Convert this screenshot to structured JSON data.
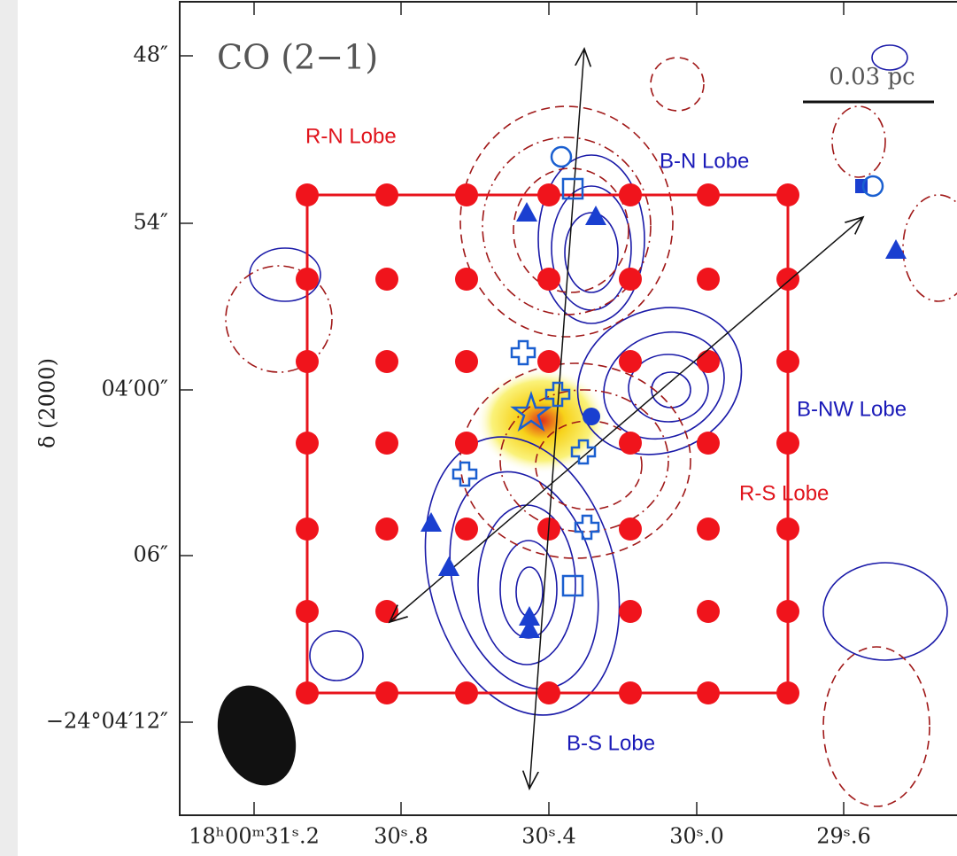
{
  "figure": {
    "title": "CO (2−1)",
    "scale_bar": "0.03 pc",
    "y_axis_label": "δ (2000)",
    "y_tick_labels": [
      "48″",
      "54″",
      "04′00″",
      "06″",
      "−24°04′12″"
    ],
    "x_tick_labels": [
      "18ʰ00ᵐ31ˢ.2",
      "30ˢ.8",
      "30ˢ.4",
      "30ˢ.0",
      "29ˢ.6"
    ],
    "lobes": [
      "R-N Lobe",
      "B-N Lobe",
      "B-NW Lobe",
      "R-S Lobe",
      "B-S Lobe"
    ]
  }
}
